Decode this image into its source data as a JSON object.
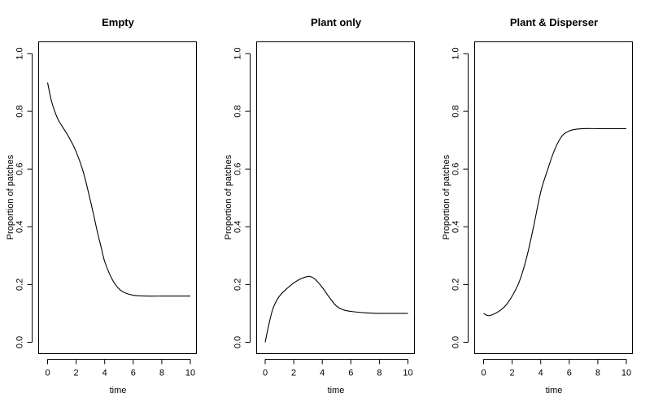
{
  "chart_data": [
    {
      "type": "line",
      "title": "Empty",
      "xlabel": "time",
      "ylabel": "Proportion of patches",
      "xlim": [
        0,
        10
      ],
      "ylim": [
        0,
        1
      ],
      "xticks": [
        "0",
        "2",
        "4",
        "6",
        "8",
        "10"
      ],
      "yticks": [
        "0.0",
        "0.2",
        "0.4",
        "0.6",
        "0.8",
        "1.0"
      ],
      "series": [
        {
          "x": [
            0,
            0.25,
            0.5,
            0.75,
            1,
            1.5,
            2,
            2.5,
            3,
            3.5,
            3.75,
            4,
            4.5,
            5,
            5.5,
            6,
            6.5,
            7,
            8,
            9,
            10
          ],
          "y": [
            0.9,
            0.84,
            0.8,
            0.77,
            0.75,
            0.71,
            0.66,
            0.59,
            0.49,
            0.38,
            0.33,
            0.28,
            0.22,
            0.185,
            0.17,
            0.163,
            0.161,
            0.16,
            0.16,
            0.16,
            0.16
          ]
        }
      ]
    },
    {
      "type": "line",
      "title": "Plant only",
      "xlabel": "time",
      "ylabel": "Proportion of patches",
      "xlim": [
        0,
        10
      ],
      "ylim": [
        0,
        1
      ],
      "xticks": [
        "0",
        "2",
        "4",
        "6",
        "8",
        "10"
      ],
      "yticks": [
        "0.0",
        "0.2",
        "0.4",
        "0.6",
        "0.8",
        "1.0"
      ],
      "series": [
        {
          "x": [
            0,
            0.25,
            0.5,
            0.75,
            1,
            1.5,
            2,
            2.5,
            3,
            3.25,
            3.5,
            4,
            4.5,
            5,
            5.5,
            6,
            7,
            8,
            9,
            10
          ],
          "y": [
            0.0,
            0.06,
            0.11,
            0.14,
            0.16,
            0.185,
            0.205,
            0.22,
            0.228,
            0.226,
            0.218,
            0.19,
            0.155,
            0.125,
            0.112,
            0.107,
            0.102,
            0.1,
            0.1,
            0.1
          ]
        }
      ]
    },
    {
      "type": "line",
      "title": "Plant & Disperser",
      "xlabel": "time",
      "ylabel": "Proportion of patches",
      "xlim": [
        0,
        10
      ],
      "ylim": [
        0,
        1
      ],
      "xticks": [
        "0",
        "2",
        "4",
        "6",
        "8",
        "10"
      ],
      "yticks": [
        "0.0",
        "0.2",
        "0.4",
        "0.6",
        "0.8",
        "1.0"
      ],
      "series": [
        {
          "x": [
            0,
            0.25,
            0.5,
            1,
            1.5,
            2,
            2.5,
            3,
            3.5,
            4,
            4.5,
            5,
            5.5,
            6,
            6.5,
            7,
            8,
            9,
            10
          ],
          "y": [
            0.1,
            0.093,
            0.093,
            0.105,
            0.125,
            0.16,
            0.21,
            0.29,
            0.4,
            0.52,
            0.6,
            0.67,
            0.715,
            0.732,
            0.738,
            0.74,
            0.74,
            0.74,
            0.74
          ]
        }
      ]
    }
  ]
}
